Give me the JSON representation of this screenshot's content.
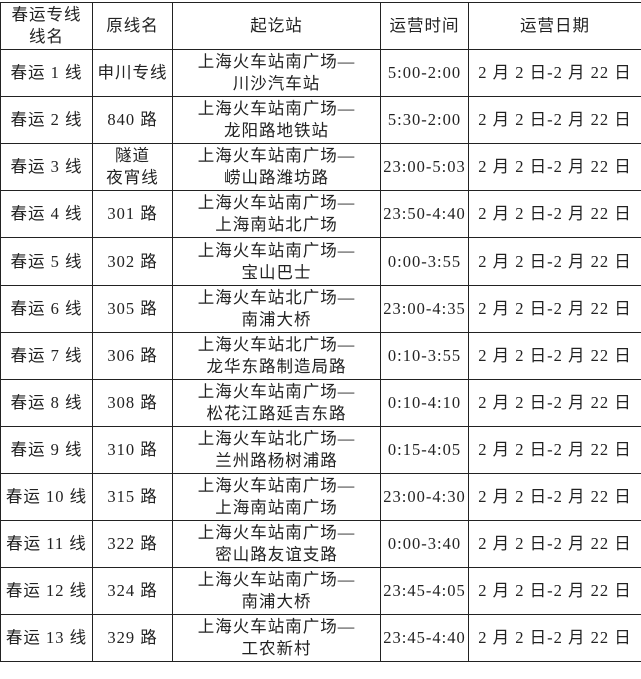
{
  "table": {
    "headers": [
      "春运专线\n线名",
      "原线名",
      "起讫站",
      "运营时间",
      "运营日期"
    ],
    "rows": [
      [
        "春运 1 线",
        "申川专线",
        "上海火车站南广场—\n川沙汽车站",
        "5:00-2:00",
        "2 月 2 日-2 月 22 日"
      ],
      [
        "春运 2 线",
        "840 路",
        "上海火车站南广场—\n龙阳路地铁站",
        "5:30-2:00",
        "2 月 2 日-2 月 22 日"
      ],
      [
        "春运 3 线",
        "隧道\n夜宵线",
        "上海火车站南广场—\n崂山路潍坊路",
        "23:00-5:03",
        "2 月 2 日-2 月 22 日"
      ],
      [
        "春运 4 线",
        "301 路",
        "上海火车站南广场—\n上海南站北广场",
        "23:50-4:40",
        "2 月 2 日-2 月 22 日"
      ],
      [
        "春运 5 线",
        "302 路",
        "上海火车站南广场—\n宝山巴士",
        "0:00-3:55",
        "2 月 2 日-2 月 22 日"
      ],
      [
        "春运 6 线",
        "305 路",
        "上海火车站北广场—\n南浦大桥",
        "23:00-4:35",
        "2 月 2 日-2 月 22 日"
      ],
      [
        "春运 7 线",
        "306 路",
        "上海火车站北广场—\n龙华东路制造局路",
        "0:10-3:55",
        "2 月 2 日-2 月 22 日"
      ],
      [
        "春运 8 线",
        "308 路",
        "上海火车站南广场—\n松花江路延吉东路",
        "0:10-4:10",
        "2 月 2 日-2 月 22 日"
      ],
      [
        "春运 9 线",
        "310 路",
        "上海火车站北广场—\n兰州路杨树浦路",
        "0:15-4:05",
        "2 月 2 日-2 月 22 日"
      ],
      [
        "春运 10 线",
        "315 路",
        "上海火车站南广场—\n上海南站南广场",
        "23:00-4:30",
        "2 月 2 日-2 月 22 日"
      ],
      [
        "春运 11 线",
        "322 路",
        "上海火车站南广场—\n密山路友谊支路",
        "0:00-3:40",
        "2 月 2 日-2 月 22 日"
      ],
      [
        "春运 12 线",
        "324 路",
        "上海火车站南广场—\n南浦大桥",
        "23:45-4:05",
        "2 月 2 日-2 月 22 日"
      ],
      [
        "春运 13 线",
        "329 路",
        "上海火车站南广场—\n工农新村",
        "23:45-4:40",
        "2 月 2 日-2 月 22 日"
      ]
    ]
  }
}
